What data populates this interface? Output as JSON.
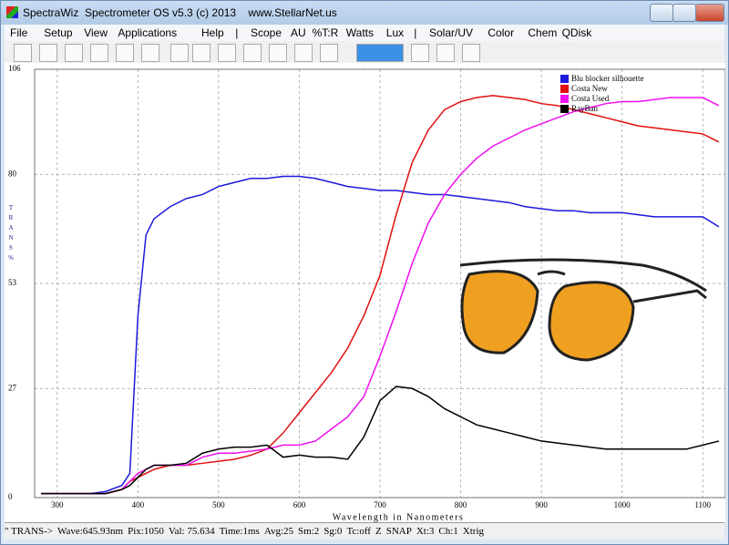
{
  "window": {
    "title": "SpectraWiz  Spectrometer OS v5.3 (c) 2013    www.StellarNet.us",
    "menu": [
      "File",
      "Setup",
      "View",
      "Applications",
      "Help",
      "|",
      "Scope",
      "AU",
      "%T:R",
      "Watts",
      "Lux",
      "|",
      "Solar/UV",
      "Color",
      "Chem",
      "QDisk"
    ],
    "status": [
      "\" TRANS->",
      "Wave:645.93nm",
      "Pix:1050",
      "Val: 75.634",
      "Time:1ms",
      "Avg:25",
      "Sm:2",
      "Sg:0",
      "Tc:off",
      "Z",
      "SNAP",
      "Xt:3",
      "Ch:1",
      "Xtrig"
    ]
  },
  "chart_data": {
    "type": "line",
    "xlabel": "Wavelength in Nanometers",
    "ylabel": "TRANS%",
    "x": [
      280,
      300,
      320,
      340,
      360,
      380,
      390,
      400,
      410,
      420,
      440,
      460,
      480,
      500,
      520,
      540,
      560,
      580,
      600,
      620,
      640,
      660,
      680,
      700,
      720,
      740,
      760,
      780,
      800,
      820,
      840,
      860,
      880,
      900,
      920,
      940,
      960,
      980,
      1000,
      1020,
      1040,
      1060,
      1080,
      1100,
      1120
    ],
    "series": [
      {
        "name": "Blu blocker silhouette",
        "color": "#1a1adc",
        "values": [
          1,
          1,
          1,
          1,
          1.5,
          3,
          6,
          45,
          65,
          69,
          72,
          74,
          75,
          77,
          78,
          79,
          79,
          79.5,
          79.5,
          79,
          78,
          77,
          76.5,
          76,
          76,
          75.5,
          75,
          75,
          74.5,
          74,
          73.5,
          73,
          72,
          71.5,
          71,
          71,
          70.5,
          70.5,
          70.5,
          70,
          69.5,
          69.5,
          69.5,
          69.5,
          67
        ]
      },
      {
        "name": "Costa New",
        "color": "#e01010",
        "values": [
          1,
          1,
          1,
          1,
          1,
          2,
          4,
          5,
          6,
          7,
          8,
          8,
          8.5,
          9,
          9.5,
          10.5,
          12,
          16,
          21,
          26,
          31,
          37,
          45,
          55,
          70,
          83,
          91,
          96,
          98,
          99,
          99.5,
          99,
          98.5,
          97.5,
          97,
          96,
          95,
          94,
          93,
          92,
          91.5,
          91,
          90.5,
          90,
          88
        ]
      },
      {
        "name": "Costa Used",
        "color": "#ee10ee",
        "values": [
          1,
          1,
          1,
          1,
          1,
          2,
          4,
          6,
          7,
          8,
          8,
          8,
          10,
          11,
          11,
          11.5,
          12,
          13,
          13,
          14,
          17,
          20,
          25,
          35,
          46,
          58,
          68,
          75,
          80,
          84,
          87,
          89,
          91,
          92.5,
          94,
          95.5,
          96.5,
          97.5,
          98,
          98,
          98.5,
          99,
          99,
          99,
          97
        ]
      },
      {
        "name": "RayBan",
        "color": "#000000",
        "values": [
          1,
          1,
          1,
          1,
          1,
          2,
          3,
          5,
          7,
          8,
          8,
          8.5,
          11,
          12,
          12.5,
          12.5,
          13,
          10,
          10.5,
          10,
          10,
          9.5,
          15,
          24,
          27.5,
          27,
          25,
          22,
          20,
          18,
          17,
          16,
          15,
          14,
          13.5,
          13,
          12.5,
          12,
          12,
          12,
          12,
          12,
          12,
          13,
          14
        ]
      }
    ],
    "xlim": [
      272,
      1128
    ],
    "ylim": [
      0,
      106
    ],
    "xticks": [
      300,
      400,
      500,
      600,
      700,
      800,
      900,
      1000,
      1100
    ],
    "yticks": [
      0,
      27,
      53,
      80,
      106
    ],
    "grid": true,
    "legend": "upper right"
  }
}
